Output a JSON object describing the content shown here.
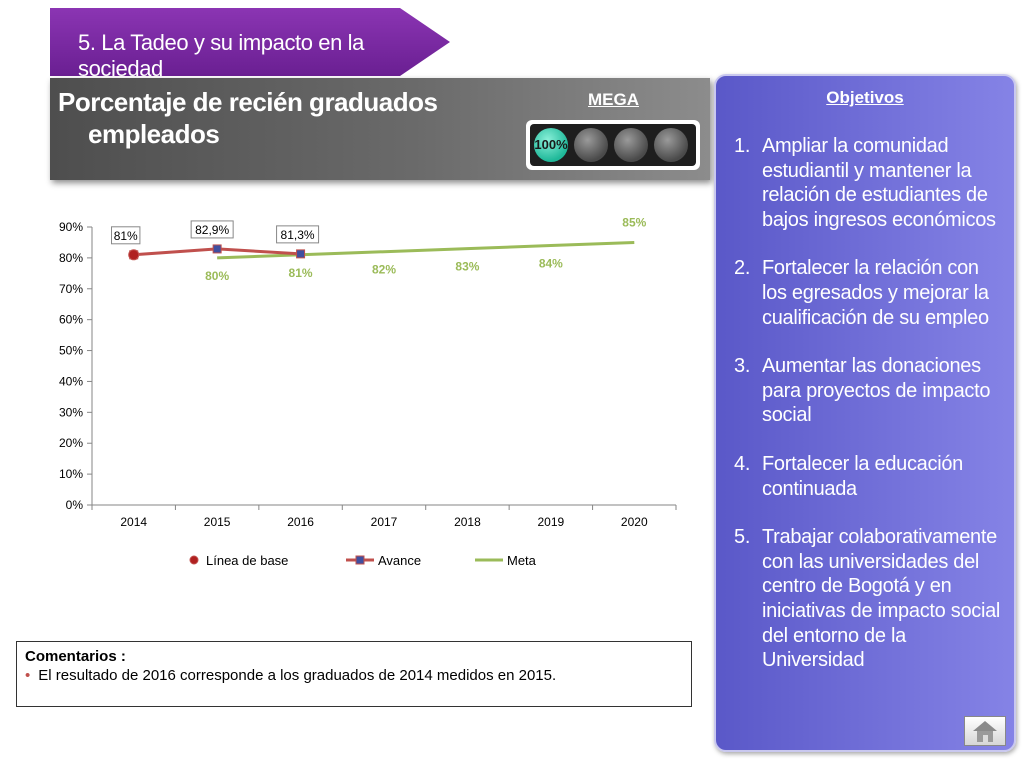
{
  "banner": {
    "text": "5. La Tadeo y su impacto en la sociedad"
  },
  "title": {
    "line1": "Porcentaje de recién graduados",
    "line2": "empleados"
  },
  "mega": {
    "label": "MEGA",
    "indicator_value": "100%",
    "lights_total": 4,
    "lights_on": 1
  },
  "chart_data": {
    "type": "line",
    "x": [
      "2014",
      "2015",
      "2016",
      "2017",
      "2018",
      "2019",
      "2020"
    ],
    "ylim": [
      0,
      90
    ],
    "yticks": [
      "0%",
      "10%",
      "20%",
      "30%",
      "40%",
      "50%",
      "60%",
      "70%",
      "80%",
      "90%"
    ],
    "series": [
      {
        "name": "Línea de base",
        "color": "#c0504d",
        "marker": "circle",
        "points": [
          {
            "x": "2014",
            "y": 81,
            "label": "81%"
          }
        ]
      },
      {
        "name": "Avance",
        "color": "#c0504d",
        "marker": "square",
        "points": [
          {
            "x": "2014",
            "y": 81
          },
          {
            "x": "2015",
            "y": 82.9,
            "label": "82,9%"
          },
          {
            "x": "2016",
            "y": 81.3,
            "label": "81,3%"
          }
        ]
      },
      {
        "name": "Meta",
        "color": "#9bbb59",
        "marker": "none",
        "points": [
          {
            "x": "2015",
            "y": 80,
            "label": "80%"
          },
          {
            "x": "2016",
            "y": 81,
            "label": "81%"
          },
          {
            "x": "2017",
            "y": 82,
            "label": "82%"
          },
          {
            "x": "2018",
            "y": 83,
            "label": "83%"
          },
          {
            "x": "2019",
            "y": 84,
            "label": "84%"
          },
          {
            "x": "2020",
            "y": 85,
            "label": "85%"
          }
        ]
      }
    ],
    "legend_position": "bottom"
  },
  "comments": {
    "heading": "Comentarios :",
    "items": [
      "El resultado de 2016 corresponde a los graduados de 2014 medidos en 2015."
    ]
  },
  "objectives": {
    "title": "Objetivos",
    "items": [
      "Ampliar la comunidad estudiantil y mantener la relación de estudiantes de bajos ingresos económicos",
      "Fortalecer la relación con los egresados y mejorar la cualificación de su empleo",
      "Aumentar las donaciones para proyectos de impacto social",
      "Fortalecer la educación continuada",
      "Trabajar colaborativamente con las universidades del centro de Bogotá y en iniciativas de impacto social del entorno de la Universidad"
    ]
  },
  "home_icon": "home-icon"
}
